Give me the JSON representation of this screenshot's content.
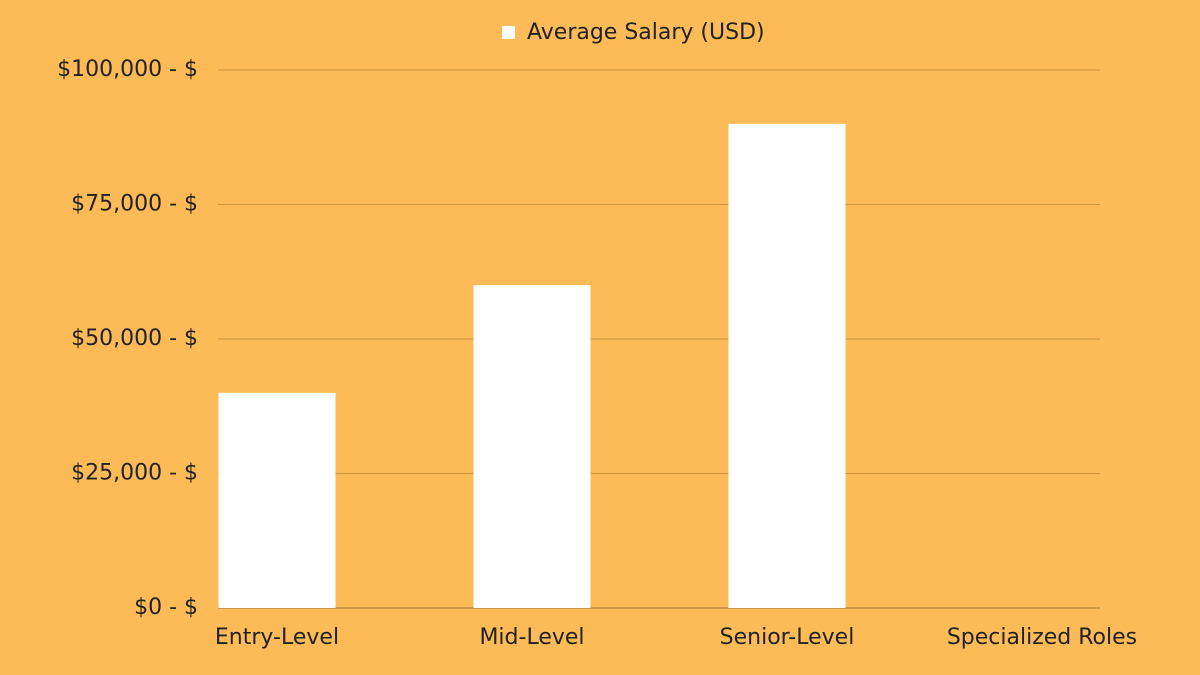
{
  "chart_data": {
    "type": "bar",
    "categories": [
      "Entry-Level",
      "Mid-Level",
      "Senior-Level",
      "Specialized Roles"
    ],
    "series": [
      {
        "name": "Average Salary (USD)",
        "color": "#ffffff",
        "values": [
          40000,
          60000,
          90000,
          null
        ]
      }
    ],
    "ylim": [
      0,
      100000
    ],
    "yticks": [
      {
        "value": 0,
        "label": "$0 - $"
      },
      {
        "value": 25000,
        "label": "$25,000 - $"
      },
      {
        "value": 50000,
        "label": "$50,000 - $"
      },
      {
        "value": 75000,
        "label": "$75,000 - $"
      },
      {
        "value": 100000,
        "label": "$100,000 - $"
      }
    ],
    "grid": true,
    "legend": "top"
  }
}
